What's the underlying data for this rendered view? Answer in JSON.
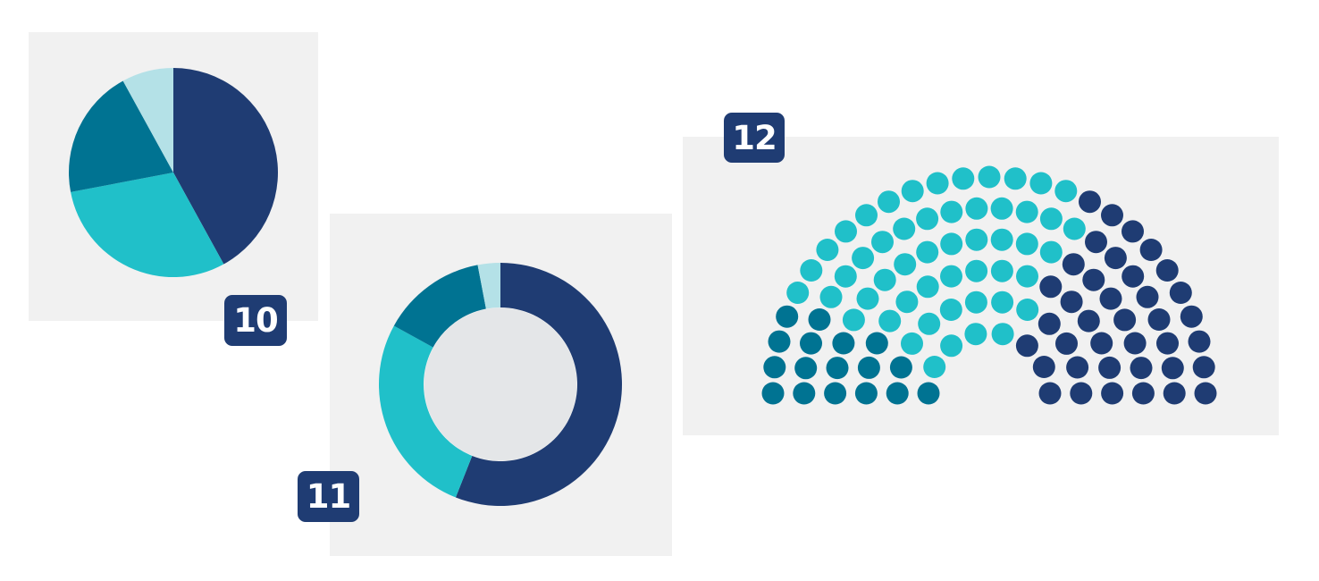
{
  "colors": {
    "navy": "#1f3c73",
    "teal": "#007392",
    "turquoise": "#20c0c9",
    "light_blue": "#b4e1e7",
    "donut_hole": "#e4e6e8",
    "panel_bg": "#f1f1f1",
    "badge_bg": "#1f3c73",
    "badge_text": "#ffffff"
  },
  "badges": {
    "pie": "10",
    "donut": "11",
    "parliament": "12"
  },
  "chart_data": [
    {
      "type": "pie",
      "badge": "10",
      "slices": [
        {
          "value": 42,
          "color": "#1f3c73"
        },
        {
          "value": 30,
          "color": "#20c0c9"
        },
        {
          "value": 20,
          "color": "#007392"
        },
        {
          "value": 8,
          "color": "#b4e1e7"
        }
      ]
    },
    {
      "type": "pie",
      "variant": "donut",
      "badge": "11",
      "slices": [
        {
          "value": 56,
          "color": "#1f3c73"
        },
        {
          "value": 27,
          "color": "#20c0c9"
        },
        {
          "value": 14,
          "color": "#007392"
        },
        {
          "value": 3,
          "color": "#b4e1e7"
        }
      ]
    },
    {
      "type": "parliament",
      "badge": "12",
      "rows": 6,
      "seats": [
        {
          "count": 17,
          "color": "#007392"
        },
        {
          "count": 52,
          "color": "#20c0c9"
        },
        {
          "count": 38,
          "color": "#1f3c73"
        }
      ]
    }
  ]
}
